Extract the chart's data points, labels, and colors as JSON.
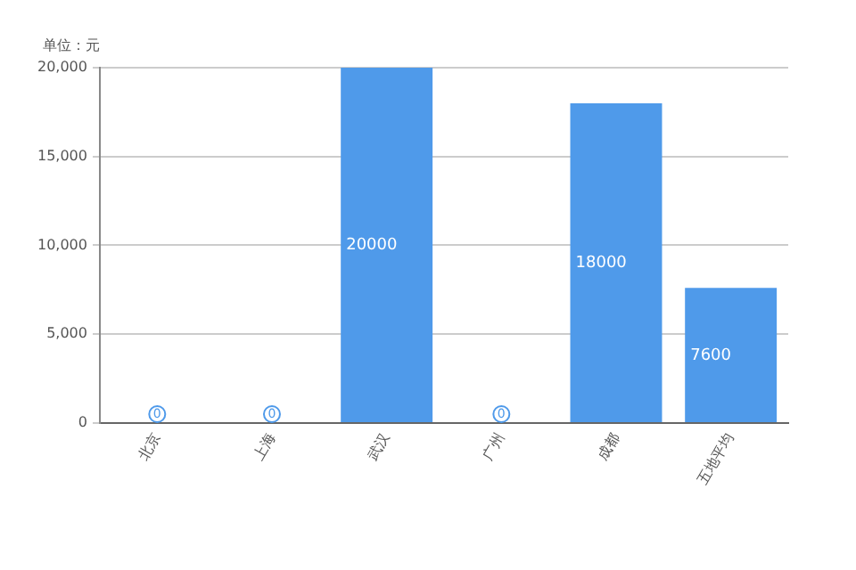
{
  "chart_data": {
    "type": "bar",
    "ylabel": "单位：元",
    "categories": [
      "北京",
      "上海",
      "武汉",
      "广州",
      "成都",
      "五地平均"
    ],
    "series": [
      {
        "color": "#4f9aea",
        "values": [
          0,
          0,
          20000,
          0,
          18000,
          7600
        ]
      }
    ],
    "ylim": [
      0,
      20000
    ],
    "yticks": [
      0,
      {
        "value": 5000,
        "label": "5,000"
      },
      {
        "value": 10000,
        "label": "10,000"
      },
      {
        "value": 15000,
        "label": "15,000"
      },
      {
        "value": 20000,
        "label": "20,000"
      }
    ],
    "grid": "y",
    "data_labels": true,
    "legend": false
  }
}
